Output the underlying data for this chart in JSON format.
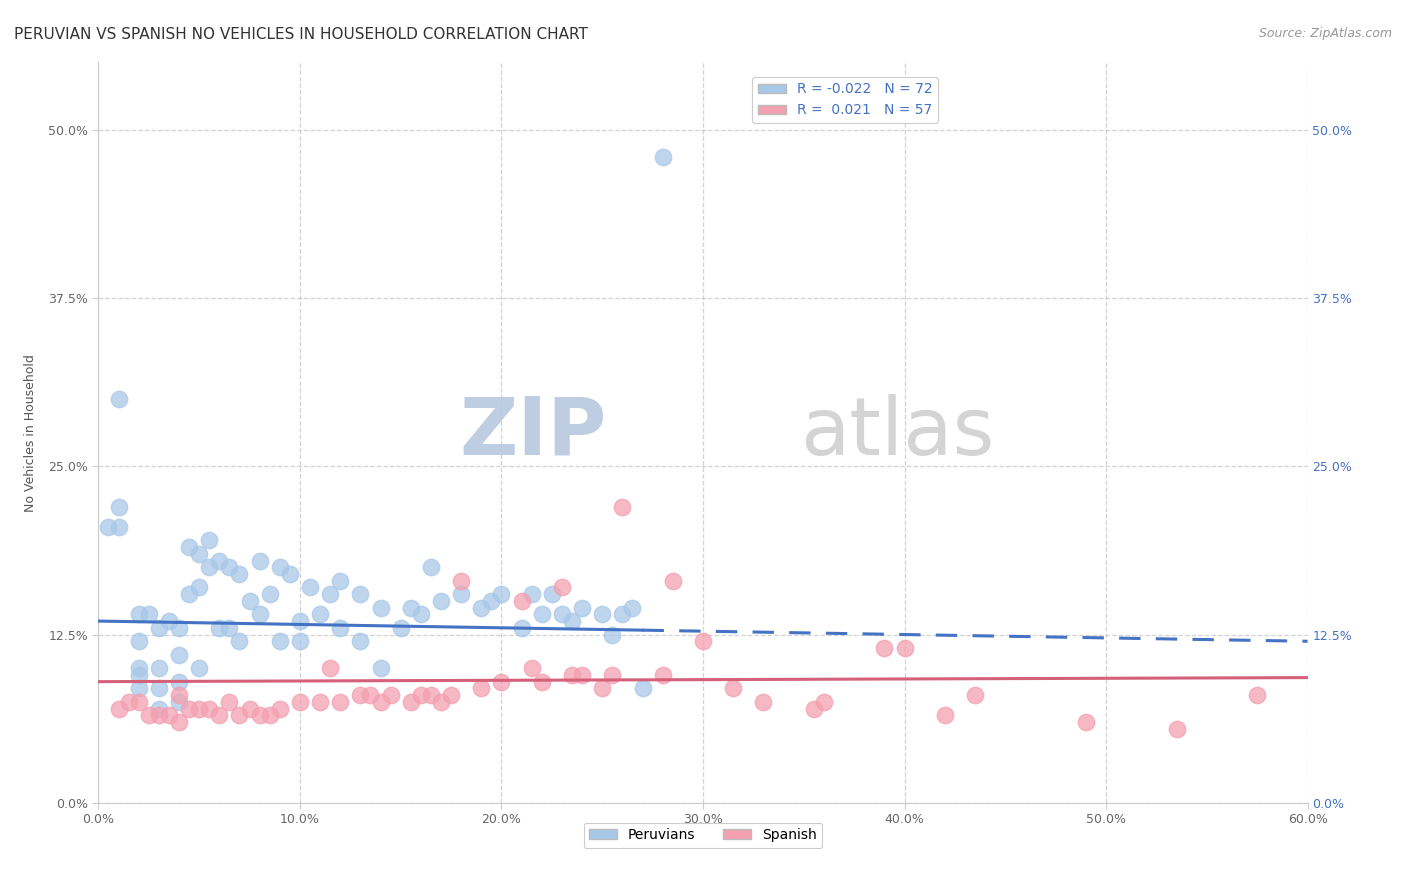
{
  "title": "PERUVIAN VS SPANISH NO VEHICLES IN HOUSEHOLD CORRELATION CHART",
  "source": "Source: ZipAtlas.com",
  "ylabel": "No Vehicles in Household",
  "xlabel": "",
  "xlim": [
    0.0,
    0.6
  ],
  "ylim": [
    0.0,
    0.55
  ],
  "xtick_labels": [
    "0.0%",
    "10.0%",
    "20.0%",
    "30.0%",
    "40.0%",
    "50.0%",
    "60.0%"
  ],
  "xtick_values": [
    0.0,
    0.1,
    0.2,
    0.3,
    0.4,
    0.5,
    0.6
  ],
  "ytick_labels": [
    "0.0%",
    "12.5%",
    "25.0%",
    "37.5%",
    "50.0%"
  ],
  "ytick_values": [
    0.0,
    0.125,
    0.25,
    0.375,
    0.5
  ],
  "right_ytick_labels": [
    "0.0%",
    "12.5%",
    "25.0%",
    "37.5%",
    "50.0%"
  ],
  "peruvian_R": -0.022,
  "peruvian_N": 72,
  "spanish_R": 0.021,
  "spanish_N": 57,
  "peruvian_color": "#a8c8e8",
  "spanish_color": "#f4a0b0",
  "peruvian_line_color": "#4472c4",
  "spanish_line_color": "#d4607a",
  "watermark": "ZIPatlas",
  "peruvian_line_x0": 0.0,
  "peruvian_line_y0": 0.135,
  "peruvian_line_x1": 0.6,
  "peruvian_line_y1": 0.12,
  "spanish_line_x0": 0.0,
  "spanish_line_y0": 0.09,
  "spanish_line_x1": 0.6,
  "spanish_line_y1": 0.093,
  "peruvian_scatter_x": [
    0.005,
    0.01,
    0.01,
    0.01,
    0.02,
    0.02,
    0.02,
    0.02,
    0.02,
    0.025,
    0.03,
    0.03,
    0.03,
    0.03,
    0.035,
    0.04,
    0.04,
    0.04,
    0.04,
    0.045,
    0.045,
    0.05,
    0.05,
    0.05,
    0.055,
    0.055,
    0.06,
    0.06,
    0.065,
    0.065,
    0.07,
    0.07,
    0.075,
    0.08,
    0.08,
    0.085,
    0.09,
    0.09,
    0.095,
    0.1,
    0.1,
    0.105,
    0.11,
    0.115,
    0.12,
    0.12,
    0.13,
    0.13,
    0.14,
    0.14,
    0.15,
    0.155,
    0.16,
    0.165,
    0.17,
    0.18,
    0.19,
    0.195,
    0.2,
    0.21,
    0.215,
    0.22,
    0.225,
    0.23,
    0.235,
    0.24,
    0.25,
    0.255,
    0.26,
    0.265,
    0.27,
    0.28
  ],
  "peruvian_scatter_y": [
    0.205,
    0.3,
    0.22,
    0.205,
    0.14,
    0.12,
    0.1,
    0.095,
    0.085,
    0.14,
    0.13,
    0.1,
    0.085,
    0.07,
    0.135,
    0.13,
    0.11,
    0.09,
    0.075,
    0.19,
    0.155,
    0.185,
    0.16,
    0.1,
    0.195,
    0.175,
    0.18,
    0.13,
    0.175,
    0.13,
    0.17,
    0.12,
    0.15,
    0.18,
    0.14,
    0.155,
    0.175,
    0.12,
    0.17,
    0.135,
    0.12,
    0.16,
    0.14,
    0.155,
    0.165,
    0.13,
    0.155,
    0.12,
    0.145,
    0.1,
    0.13,
    0.145,
    0.14,
    0.175,
    0.15,
    0.155,
    0.145,
    0.15,
    0.155,
    0.13,
    0.155,
    0.14,
    0.155,
    0.14,
    0.135,
    0.145,
    0.14,
    0.125,
    0.14,
    0.145,
    0.085,
    0.48
  ],
  "spanish_scatter_x": [
    0.01,
    0.015,
    0.02,
    0.025,
    0.03,
    0.035,
    0.04,
    0.04,
    0.045,
    0.05,
    0.055,
    0.06,
    0.065,
    0.07,
    0.075,
    0.08,
    0.085,
    0.09,
    0.1,
    0.11,
    0.115,
    0.12,
    0.13,
    0.135,
    0.14,
    0.145,
    0.155,
    0.16,
    0.165,
    0.17,
    0.175,
    0.18,
    0.19,
    0.2,
    0.21,
    0.215,
    0.22,
    0.23,
    0.235,
    0.24,
    0.25,
    0.255,
    0.26,
    0.28,
    0.285,
    0.3,
    0.315,
    0.33,
    0.355,
    0.36,
    0.39,
    0.4,
    0.42,
    0.435,
    0.49,
    0.535,
    0.575
  ],
  "spanish_scatter_y": [
    0.07,
    0.075,
    0.075,
    0.065,
    0.065,
    0.065,
    0.06,
    0.08,
    0.07,
    0.07,
    0.07,
    0.065,
    0.075,
    0.065,
    0.07,
    0.065,
    0.065,
    0.07,
    0.075,
    0.075,
    0.1,
    0.075,
    0.08,
    0.08,
    0.075,
    0.08,
    0.075,
    0.08,
    0.08,
    0.075,
    0.08,
    0.165,
    0.085,
    0.09,
    0.15,
    0.1,
    0.09,
    0.16,
    0.095,
    0.095,
    0.085,
    0.095,
    0.22,
    0.095,
    0.165,
    0.12,
    0.085,
    0.075,
    0.07,
    0.075,
    0.115,
    0.115,
    0.065,
    0.08,
    0.06,
    0.055,
    0.08
  ],
  "title_fontsize": 11,
  "axis_label_fontsize": 9,
  "tick_fontsize": 9,
  "legend_fontsize": 10,
  "source_fontsize": 9,
  "background_color": "#ffffff",
  "grid_color": "#c8c8c8",
  "watermark_color": "#d4dff0"
}
